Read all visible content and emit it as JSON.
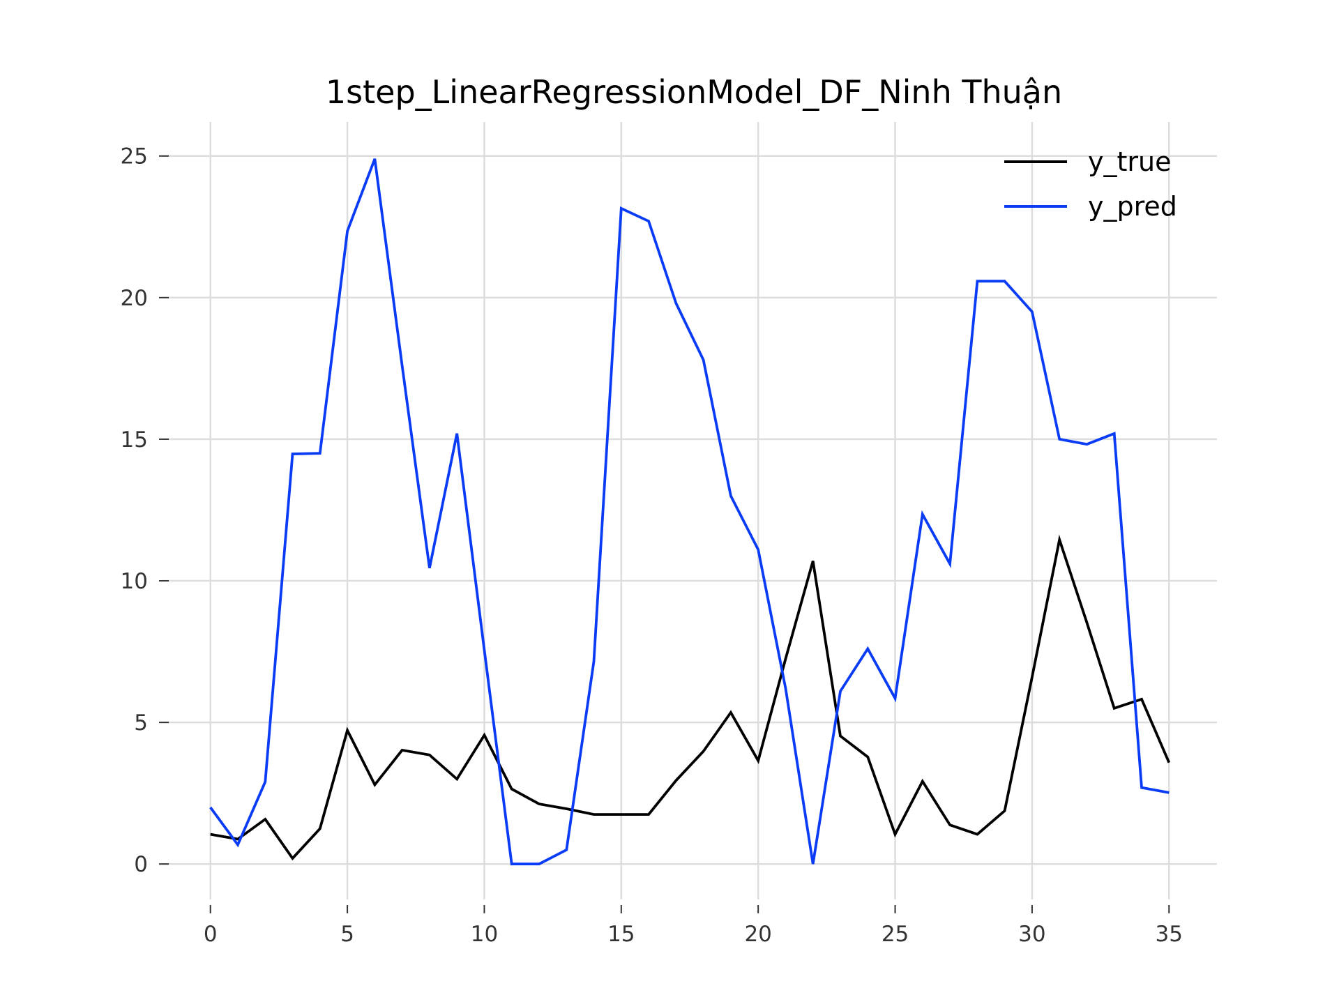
{
  "chart_data": {
    "type": "line",
    "title": "1step_LinearRegressionModel_DF_Ninh Thuận",
    "xlabel": "",
    "ylabel": "",
    "xlim": [
      -1.75,
      36.75
    ],
    "ylim": [
      -1.25,
      26.2
    ],
    "xticks": [
      0,
      5,
      10,
      15,
      20,
      25,
      30,
      35
    ],
    "yticks": [
      0,
      5,
      10,
      15,
      20,
      25
    ],
    "grid": true,
    "legend": "top-right",
    "x": [
      0,
      1,
      2,
      3,
      4,
      5,
      6,
      7,
      8,
      9,
      10,
      11,
      12,
      13,
      14,
      15,
      16,
      17,
      18,
      19,
      20,
      21,
      22,
      23,
      24,
      25,
      26,
      27,
      28,
      29,
      30,
      31,
      32,
      33,
      34,
      35
    ],
    "series": [
      {
        "name": "y_true",
        "color": "#000000",
        "values": [
          1.05,
          0.88,
          1.58,
          0.2,
          1.25,
          4.72,
          2.8,
          4.02,
          3.85,
          3.0,
          4.55,
          2.65,
          2.12,
          1.95,
          1.75,
          1.75,
          1.75,
          2.95,
          3.98,
          5.35,
          3.65,
          7.25,
          10.7,
          4.52,
          3.78,
          1.05,
          2.92,
          1.38,
          1.05,
          1.88,
          6.6,
          11.45,
          8.52,
          5.5,
          5.82,
          3.58
        ]
      },
      {
        "name": "y_pred",
        "color": "#0a3cf5",
        "values": [
          2.0,
          0.68,
          2.9,
          14.48,
          14.5,
          22.35,
          24.9,
          17.6,
          10.45,
          15.2,
          7.55,
          0.0,
          0.0,
          0.5,
          7.15,
          23.15,
          22.7,
          19.8,
          17.8,
          13.0,
          11.1,
          6.2,
          0.0,
          6.1,
          7.6,
          5.85,
          12.35,
          10.6,
          20.58,
          20.58,
          19.5,
          15.0,
          14.82,
          15.2,
          2.7,
          2.52
        ]
      }
    ]
  }
}
